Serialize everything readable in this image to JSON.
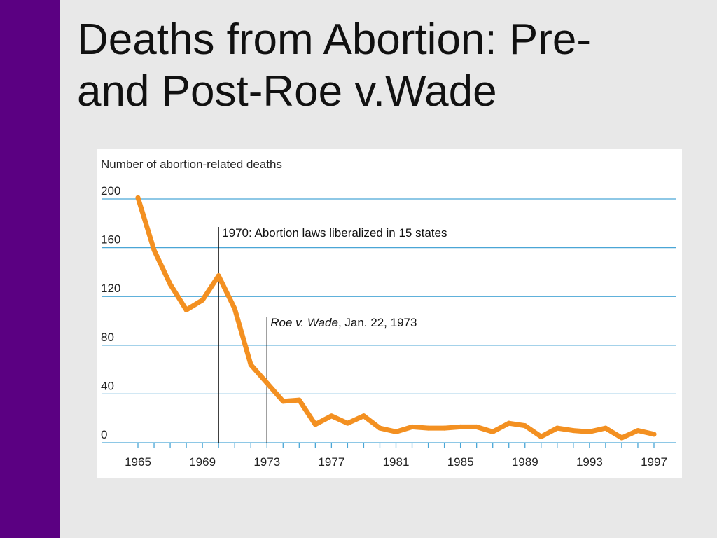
{
  "slide": {
    "title_line1": "Deaths from Abortion: Pre-",
    "title_line2": "and Post-Roe v.Wade"
  },
  "colors": {
    "accent_bar": "#5b0082",
    "series_line": "#f39021",
    "gridline": "#4aa6d6"
  },
  "chart_data": {
    "type": "line",
    "title": "",
    "ylabel": "Number of abortion-related deaths",
    "xlabel": "",
    "ylim": [
      0,
      200
    ],
    "xlim": [
      1965,
      1997
    ],
    "yticks": [
      0,
      40,
      80,
      120,
      160,
      200
    ],
    "xticks": [
      1965,
      1969,
      1973,
      1977,
      1981,
      1985,
      1989,
      1993,
      1997
    ],
    "grid": true,
    "series": [
      {
        "x": [
          1965,
          1966,
          1967,
          1968,
          1969,
          1970,
          1971,
          1972,
          1973,
          1974,
          1975,
          1976,
          1977,
          1978,
          1979,
          1980,
          1981,
          1982,
          1983,
          1984,
          1985,
          1986,
          1987,
          1988,
          1989,
          1990,
          1991,
          1992,
          1993,
          1994,
          1995,
          1996,
          1997
        ],
        "values": [
          201,
          158,
          130,
          109,
          117,
          137,
          110,
          64,
          49,
          34,
          35,
          15,
          22,
          16,
          22,
          12,
          9,
          13,
          12,
          12,
          13,
          13,
          9,
          16,
          14,
          5,
          12,
          10,
          9,
          12,
          4,
          10,
          7
        ]
      }
    ],
    "annotations": [
      {
        "x": 1970,
        "prefix": "1970: Abortion laws liberalized in 15 states",
        "italic": ""
      },
      {
        "x": 1973,
        "prefix": "",
        "italic": "Roe v. Wade",
        "suffix": ", Jan. 22, 1973"
      }
    ]
  }
}
